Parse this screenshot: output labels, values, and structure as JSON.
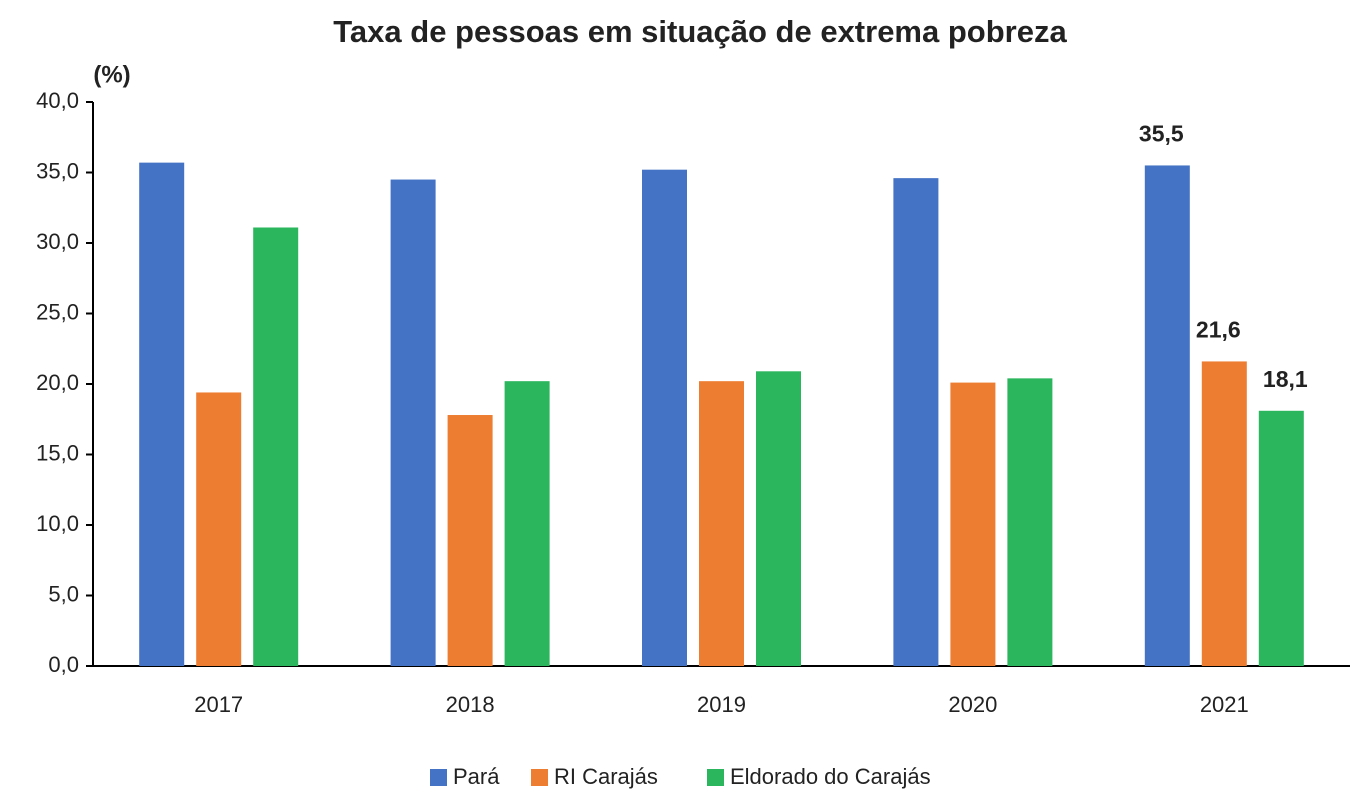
{
  "chart_data": {
    "type": "bar",
    "title": "Taxa de pessoas em situação de extrema pobreza",
    "y_label": "(%)",
    "categories": [
      "2017",
      "2018",
      "2019",
      "2020",
      "2021"
    ],
    "series": [
      {
        "name": "Pará",
        "color": "#4472c4",
        "values": [
          35.7,
          34.5,
          35.2,
          34.6,
          35.5
        ],
        "value_labels": [
          null,
          null,
          null,
          null,
          "35,5"
        ]
      },
      {
        "name": "RI Carajás",
        "color": "#ed7d31",
        "values": [
          19.4,
          17.8,
          20.2,
          20.1,
          21.6
        ],
        "value_labels": [
          null,
          null,
          null,
          null,
          "21,6"
        ]
      },
      {
        "name": "Eldorado do Carajás",
        "color": "#2bb55c",
        "values": [
          31.1,
          20.2,
          20.9,
          20.4,
          18.1
        ],
        "value_labels": [
          null,
          null,
          null,
          null,
          "18,1"
        ]
      }
    ],
    "ylim": [
      0,
      40
    ],
    "yticks": [
      {
        "value": 0,
        "label": "0,0"
      },
      {
        "value": 5,
        "label": "5,0"
      },
      {
        "value": 10,
        "label": "10,0"
      },
      {
        "value": 15,
        "label": "15,0"
      },
      {
        "value": 20,
        "label": "20,0"
      },
      {
        "value": 25,
        "label": "25,0"
      },
      {
        "value": 30,
        "label": "30,0"
      },
      {
        "value": 35,
        "label": "35,0"
      },
      {
        "value": 40,
        "label": "40,0"
      }
    ],
    "grid": false,
    "legend": "bottom"
  }
}
